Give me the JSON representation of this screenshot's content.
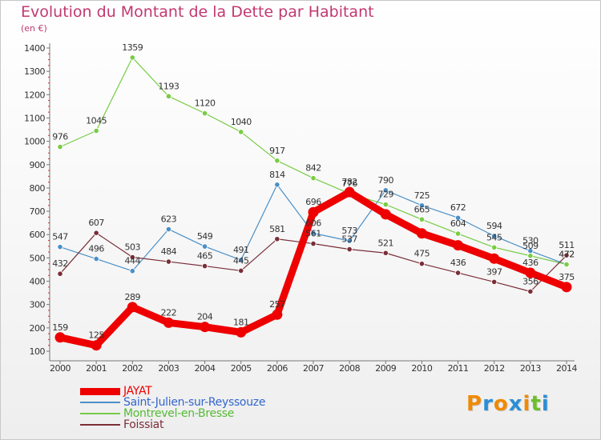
{
  "title": "Evolution du Montant de la Dette par Habitant",
  "subtitle": "(en €)",
  "logo": {
    "text": "Proxiti",
    "letter_colors": [
      "#f08a00",
      "#2b8fd6",
      "#f08a00",
      "#2b8fd6",
      "#f08a00",
      "#6bbf2b",
      "#2b8fd6"
    ]
  },
  "chart_data": {
    "type": "line",
    "x": [
      "2000",
      "2001",
      "2002",
      "2003",
      "2004",
      "2005",
      "2006",
      "2007",
      "2008",
      "2009",
      "2010",
      "2011",
      "2012",
      "2013",
      "2014"
    ],
    "ylim": [
      100,
      1400
    ],
    "yticks": [
      "100",
      "200",
      "300",
      "400",
      "500",
      "600",
      "700",
      "800",
      "900",
      "1000",
      "1100",
      "1200",
      "1300",
      "1400"
    ],
    "grid": false,
    "legend_position": "bottom-left",
    "series": [
      {
        "name": "JAYAT",
        "color": "#ee0000",
        "legend_color": "#ee0000",
        "values": [
          159,
          125,
          289,
          222,
          204,
          181,
          257,
          696,
          782,
          687,
          605,
          554,
          497,
          436,
          375
        ],
        "labels": [
          "159",
          "125",
          "289",
          "222",
          "204",
          "181",
          "257",
          "696",
          "782",
          "",
          "",
          "",
          "",
          "436",
          "375"
        ]
      },
      {
        "name": "Saint-Julien-sur-Reyssouze",
        "color": "#4a90c8",
        "legend_color": "#3366cc",
        "values": [
          547,
          496,
          444,
          623,
          549,
          491,
          814,
          606,
          573,
          790,
          725,
          672,
          594,
          530,
          472
        ],
        "labels": [
          "547",
          "496",
          "444",
          "623",
          "549",
          "491",
          "814",
          "606",
          "573",
          "790",
          "725",
          "672",
          "594",
          "530",
          "472"
        ]
      },
      {
        "name": "Montrevel-en-Bresse",
        "color": "#77cc44",
        "legend_color": "#55bb33",
        "values": [
          976,
          1045,
          1359,
          1193,
          1120,
          1040,
          917,
          842,
          776,
          729,
          665,
          604,
          545,
          509,
          472
        ],
        "labels": [
          "976",
          "1045",
          "1359",
          "1193",
          "1120",
          "1040",
          "917",
          "842",
          "776",
          "729",
          "665",
          "604",
          "545",
          "509",
          "472"
        ]
      },
      {
        "name": "Foissiat",
        "color": "#7a2e38",
        "legend_color": "#7a2e38",
        "values": [
          432,
          607,
          503,
          484,
          465,
          445,
          581,
          561,
          537,
          521,
          475,
          436,
          397,
          356,
          511
        ],
        "labels": [
          "432",
          "607",
          "503",
          "484",
          "465",
          "445",
          "581",
          "561",
          "537",
          "521",
          "475",
          "436",
          "397",
          "356",
          "511"
        ]
      }
    ]
  }
}
